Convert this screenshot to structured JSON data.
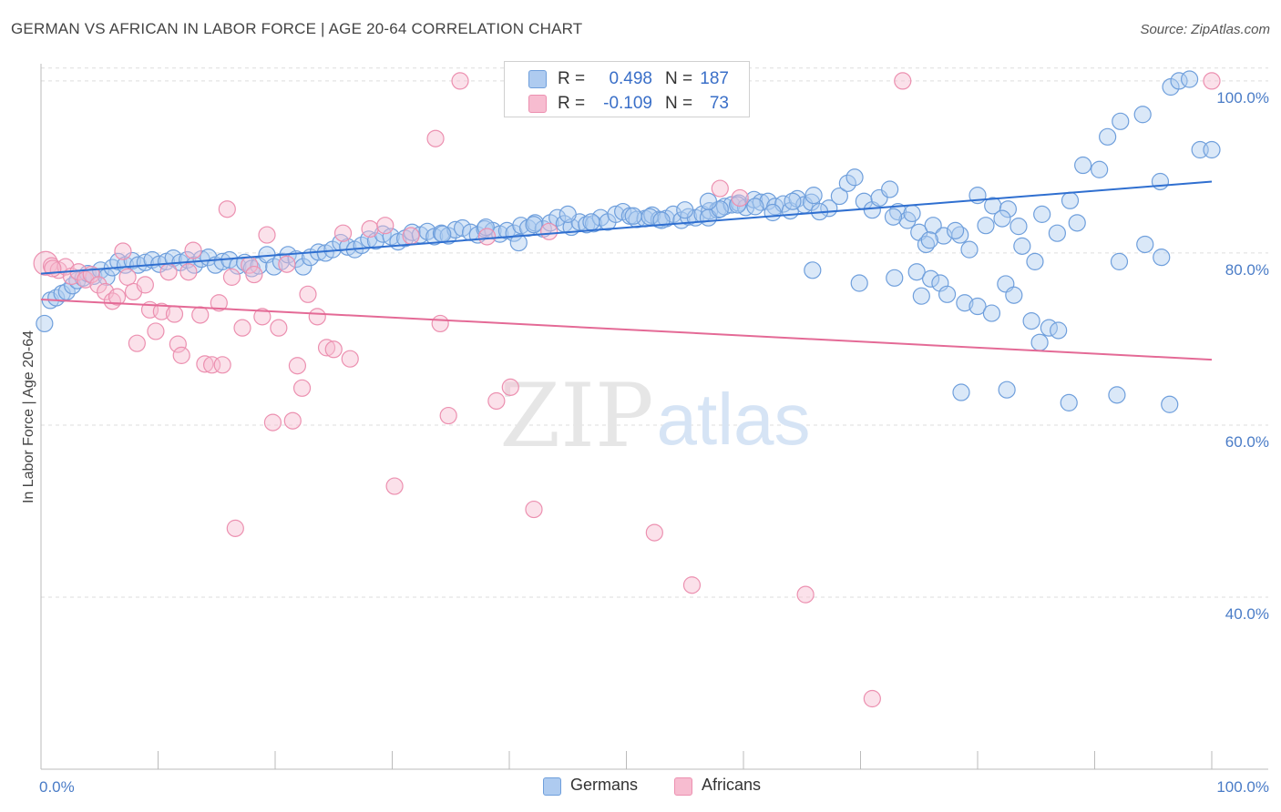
{
  "title": "GERMAN VS AFRICAN IN LABOR FORCE | AGE 20-64 CORRELATION CHART",
  "source": "Source: ZipAtlas.com",
  "watermark": {
    "zip": "ZIP",
    "atlas": "atlas"
  },
  "legend": {
    "r_label": "R =",
    "n_label": "N =",
    "german": {
      "r": "0.498",
      "n": "187"
    },
    "african": {
      "r": "-0.109",
      "n": "73"
    }
  },
  "colors": {
    "german_fill": "#aecbf0",
    "german_stroke": "#6f9fdc",
    "german_line": "#2f6fd0",
    "african_fill": "#f7bcd0",
    "african_stroke": "#ec90b0",
    "african_line": "#e46a96",
    "grid": "#dddddd",
    "tick_text": "#4a7cc7"
  },
  "chart_data": {
    "type": "scatter",
    "title": "GERMAN VS AFRICAN IN LABOR FORCE | AGE 20-64 CORRELATION CHART",
    "xlabel": "",
    "ylabel": "In Labor Force | Age 20-64",
    "xlim": [
      0,
      100
    ],
    "ylim": [
      20,
      102
    ],
    "x_tick_labels": [
      "0.0%",
      "100.0%"
    ],
    "y_ticks": [
      40,
      60,
      80,
      100
    ],
    "y_tick_labels": [
      "40.0%",
      "60.0%",
      "80.0%",
      "100.0%"
    ],
    "grid": true,
    "legend_position": "top-center",
    "bottom_legend": [
      "Germans",
      "Africans"
    ],
    "series": [
      {
        "name": "Germans",
        "trend": [
          [
            0,
            77.6
          ],
          [
            100,
            88.3
          ]
        ],
        "points": [
          [
            0.3,
            71.8
          ],
          [
            0.8,
            74.5
          ],
          [
            1.3,
            74.8
          ],
          [
            1.8,
            75.3
          ],
          [
            2.2,
            75.5
          ],
          [
            2.7,
            76.2
          ],
          [
            3.1,
            76.8
          ],
          [
            3.6,
            77.1
          ],
          [
            4.0,
            77.6
          ],
          [
            4.5,
            77.3
          ],
          [
            5.1,
            78.0
          ],
          [
            5.6,
            77.2
          ],
          [
            6.1,
            78.3
          ],
          [
            6.6,
            79.0
          ],
          [
            7.2,
            78.6
          ],
          [
            7.8,
            79.1
          ],
          [
            8.3,
            78.6
          ],
          [
            8.9,
            78.9
          ],
          [
            9.5,
            79.2
          ],
          [
            10.1,
            78.7
          ],
          [
            10.7,
            79.0
          ],
          [
            11.3,
            79.4
          ],
          [
            11.9,
            78.9
          ],
          [
            12.5,
            79.2
          ],
          [
            13.1,
            78.6
          ],
          [
            13.7,
            79.3
          ],
          [
            14.3,
            79.5
          ],
          [
            14.9,
            78.6
          ],
          [
            15.5,
            79.0
          ],
          [
            16.1,
            79.2
          ],
          [
            16.8,
            78.5
          ],
          [
            17.4,
            78.9
          ],
          [
            18.0,
            78.2
          ],
          [
            18.6,
            78.5
          ],
          [
            19.3,
            79.8
          ],
          [
            19.9,
            78.4
          ],
          [
            20.5,
            79.0
          ],
          [
            21.1,
            79.8
          ],
          [
            21.8,
            79.3
          ],
          [
            22.4,
            78.4
          ],
          [
            23.0,
            79.5
          ],
          [
            23.7,
            80.1
          ],
          [
            24.3,
            80.0
          ],
          [
            24.9,
            80.4
          ],
          [
            25.6,
            81.2
          ],
          [
            26.2,
            80.7
          ],
          [
            26.8,
            80.4
          ],
          [
            27.4,
            80.9
          ],
          [
            28.0,
            81.6
          ],
          [
            28.6,
            81.4
          ],
          [
            29.2,
            82.2
          ],
          [
            29.9,
            81.9
          ],
          [
            30.5,
            81.3
          ],
          [
            31.1,
            81.7
          ],
          [
            31.7,
            82.4
          ],
          [
            32.4,
            82.1
          ],
          [
            33.0,
            82.5
          ],
          [
            33.6,
            81.9
          ],
          [
            34.2,
            82.3
          ],
          [
            34.8,
            82.0
          ],
          [
            35.4,
            82.7
          ],
          [
            36.0,
            82.9
          ],
          [
            36.7,
            82.4
          ],
          [
            37.3,
            82.1
          ],
          [
            37.9,
            82.8
          ],
          [
            38.6,
            82.6
          ],
          [
            39.2,
            82.2
          ],
          [
            39.8,
            82.6
          ],
          [
            40.4,
            82.3
          ],
          [
            41.0,
            83.2
          ],
          [
            41.6,
            82.9
          ],
          [
            42.2,
            83.5
          ],
          [
            42.9,
            82.8
          ],
          [
            43.5,
            83.5
          ],
          [
            44.1,
            84.1
          ],
          [
            44.7,
            83.4
          ],
          [
            45.3,
            83.0
          ],
          [
            46.0,
            83.6
          ],
          [
            46.6,
            83.3
          ],
          [
            47.2,
            83.4
          ],
          [
            47.8,
            84.1
          ],
          [
            48.4,
            83.6
          ],
          [
            49.1,
            84.5
          ],
          [
            49.7,
            84.8
          ],
          [
            50.3,
            84.3
          ],
          [
            50.9,
            83.9
          ],
          [
            51.6,
            84.0
          ],
          [
            52.2,
            84.4
          ],
          [
            52.8,
            83.9
          ],
          [
            53.4,
            84.0
          ],
          [
            54.0,
            84.5
          ],
          [
            54.7,
            83.8
          ],
          [
            55.3,
            84.2
          ],
          [
            55.9,
            84.1
          ],
          [
            56.5,
            84.5
          ],
          [
            57.1,
            84.9
          ],
          [
            57.8,
            85.0
          ],
          [
            58.4,
            85.4
          ],
          [
            59.0,
            85.6
          ],
          [
            59.6,
            85.8
          ],
          [
            60.2,
            85.3
          ],
          [
            60.9,
            86.2
          ],
          [
            61.5,
            85.9
          ],
          [
            62.1,
            86.0
          ],
          [
            62.7,
            85.4
          ],
          [
            63.4,
            85.7
          ],
          [
            64.0,
            84.9
          ],
          [
            64.6,
            86.3
          ],
          [
            65.2,
            85.6
          ],
          [
            65.8,
            85.9
          ],
          [
            34.3,
            82.2
          ],
          [
            38.0,
            83.0
          ],
          [
            40.8,
            81.2
          ],
          [
            42.1,
            83.3
          ],
          [
            45.0,
            84.5
          ],
          [
            47.0,
            83.6
          ],
          [
            50.6,
            84.3
          ],
          [
            52.0,
            84.2
          ],
          [
            53.0,
            83.8
          ],
          [
            55.0,
            85.0
          ],
          [
            57.0,
            84.1
          ],
          [
            58.0,
            85.1
          ],
          [
            59.5,
            85.6
          ],
          [
            61.0,
            85.4
          ],
          [
            62.5,
            84.7
          ],
          [
            64.2,
            86.0
          ],
          [
            66.0,
            86.7
          ],
          [
            67.3,
            85.2
          ],
          [
            68.2,
            86.6
          ],
          [
            68.9,
            88.1
          ],
          [
            69.5,
            88.8
          ],
          [
            70.3,
            86.0
          ],
          [
            71.0,
            85.0
          ],
          [
            71.6,
            86.4
          ],
          [
            72.5,
            87.4
          ],
          [
            73.2,
            84.8
          ],
          [
            74.0,
            83.8
          ],
          [
            75.0,
            82.4
          ],
          [
            75.6,
            81.0
          ],
          [
            76.2,
            83.2
          ],
          [
            77.1,
            82.0
          ],
          [
            78.5,
            82.1
          ],
          [
            79.3,
            80.4
          ],
          [
            80.0,
            86.7
          ],
          [
            81.3,
            85.5
          ],
          [
            82.6,
            85.1
          ],
          [
            83.5,
            83.1
          ],
          [
            84.9,
            79.0
          ],
          [
            85.5,
            84.5
          ],
          [
            86.8,
            82.3
          ],
          [
            87.9,
            86.1
          ],
          [
            89.0,
            90.2
          ],
          [
            90.4,
            89.7
          ],
          [
            91.1,
            93.5
          ],
          [
            92.2,
            95.3
          ],
          [
            94.1,
            96.1
          ],
          [
            95.6,
            88.3
          ],
          [
            96.5,
            99.3
          ],
          [
            97.2,
            100.0
          ],
          [
            98.1,
            100.2
          ],
          [
            99.0,
            92.0
          ],
          [
            57.0,
            86.0
          ],
          [
            66.5,
            84.8
          ],
          [
            72.8,
            84.2
          ],
          [
            74.4,
            84.6
          ],
          [
            75.9,
            81.5
          ],
          [
            78.1,
            82.6
          ],
          [
            80.7,
            83.2
          ],
          [
            82.1,
            84.0
          ],
          [
            83.8,
            80.8
          ],
          [
            65.9,
            78.0
          ],
          [
            69.9,
            76.5
          ],
          [
            72.9,
            77.1
          ],
          [
            74.8,
            77.8
          ],
          [
            75.2,
            75.0
          ],
          [
            76.0,
            77.0
          ],
          [
            76.8,
            76.5
          ],
          [
            77.4,
            75.2
          ],
          [
            78.9,
            74.2
          ],
          [
            80.0,
            73.8
          ],
          [
            81.2,
            73.0
          ],
          [
            82.4,
            76.4
          ],
          [
            83.1,
            75.1
          ],
          [
            84.6,
            72.1
          ],
          [
            85.3,
            69.6
          ],
          [
            86.1,
            71.3
          ],
          [
            86.9,
            71.0
          ],
          [
            88.5,
            83.5
          ],
          [
            92.1,
            79.0
          ],
          [
            91.9,
            63.5
          ],
          [
            78.6,
            63.8
          ],
          [
            82.5,
            64.1
          ],
          [
            87.8,
            62.6
          ],
          [
            94.3,
            81.0
          ],
          [
            95.7,
            79.5
          ],
          [
            96.4,
            62.4
          ],
          [
            100.0,
            92.0
          ]
        ]
      },
      {
        "name": "Africans",
        "trend": [
          [
            0,
            74.6
          ],
          [
            100,
            67.6
          ]
        ],
        "points": [
          [
            0.4,
            78.8
          ],
          [
            0.9,
            78.5
          ],
          [
            1.5,
            78.0
          ],
          [
            2.1,
            78.4
          ],
          [
            2.6,
            77.3
          ],
          [
            3.2,
            77.8
          ],
          [
            3.8,
            76.9
          ],
          [
            4.3,
            77.5
          ],
          [
            4.9,
            76.3
          ],
          [
            5.5,
            75.5
          ],
          [
            6.1,
            74.4
          ],
          [
            6.5,
            74.9
          ],
          [
            7.0,
            80.2
          ],
          [
            7.4,
            77.2
          ],
          [
            7.9,
            75.5
          ],
          [
            8.2,
            69.5
          ],
          [
            8.9,
            76.3
          ],
          [
            9.3,
            73.4
          ],
          [
            9.8,
            70.9
          ],
          [
            10.3,
            73.2
          ],
          [
            10.9,
            77.8
          ],
          [
            11.4,
            72.9
          ],
          [
            11.7,
            69.4
          ],
          [
            12.0,
            68.1
          ],
          [
            12.6,
            77.8
          ],
          [
            13.0,
            80.3
          ],
          [
            13.6,
            72.8
          ],
          [
            14.0,
            67.1
          ],
          [
            14.6,
            67.0
          ],
          [
            15.2,
            74.2
          ],
          [
            15.5,
            67.0
          ],
          [
            15.9,
            85.1
          ],
          [
            16.3,
            77.2
          ],
          [
            16.6,
            48.0
          ],
          [
            17.2,
            71.3
          ],
          [
            17.8,
            78.6
          ],
          [
            18.2,
            77.5
          ],
          [
            18.9,
            72.6
          ],
          [
            19.3,
            82.1
          ],
          [
            19.8,
            60.3
          ],
          [
            20.3,
            71.3
          ],
          [
            21.0,
            78.7
          ],
          [
            21.5,
            60.5
          ],
          [
            21.9,
            66.9
          ],
          [
            22.3,
            64.3
          ],
          [
            22.8,
            75.2
          ],
          [
            23.6,
            72.6
          ],
          [
            24.4,
            69.0
          ],
          [
            25.0,
            68.8
          ],
          [
            25.8,
            82.3
          ],
          [
            26.4,
            67.7
          ],
          [
            28.1,
            82.8
          ],
          [
            29.4,
            83.2
          ],
          [
            30.2,
            52.9
          ],
          [
            31.6,
            82.0
          ],
          [
            33.7,
            93.3
          ],
          [
            34.1,
            71.8
          ],
          [
            34.8,
            61.1
          ],
          [
            35.8,
            100.0
          ],
          [
            38.1,
            81.9
          ],
          [
            38.9,
            62.8
          ],
          [
            40.1,
            64.4
          ],
          [
            42.1,
            50.2
          ],
          [
            43.4,
            82.5
          ],
          [
            52.4,
            47.5
          ],
          [
            55.6,
            41.4
          ],
          [
            58.0,
            87.5
          ],
          [
            59.7,
            86.4
          ],
          [
            65.3,
            40.3
          ],
          [
            71.0,
            28.2
          ],
          [
            73.6,
            100.0
          ],
          [
            100.0,
            100.0
          ],
          [
            1.0,
            78.2
          ]
        ]
      }
    ]
  }
}
